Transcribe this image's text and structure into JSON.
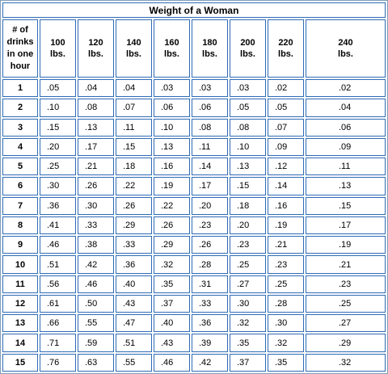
{
  "title": "Weight of a Woman",
  "corner_header": [
    "# of",
    "drinks",
    "in one",
    "hour"
  ],
  "weight_headers": [
    [
      "100",
      "lbs."
    ],
    [
      "120",
      "lbs."
    ],
    [
      "140",
      "lbs."
    ],
    [
      "160",
      "lbs."
    ],
    [
      "180",
      "lbs."
    ],
    [
      "200",
      "lbs."
    ],
    [
      "220",
      "lbs."
    ],
    [
      "240",
      "lbs."
    ]
  ],
  "rows": [
    {
      "drinks": "1",
      "values": [
        ".05",
        ".04",
        ".04",
        ".03",
        ".03",
        ".03",
        ".02",
        ".02"
      ]
    },
    {
      "drinks": "2",
      "values": [
        ".10",
        ".08",
        ".07",
        ".06",
        ".06",
        ".05",
        ".05",
        ".04"
      ]
    },
    {
      "drinks": "3",
      "values": [
        ".15",
        ".13",
        ".11",
        ".10",
        ".08",
        ".08",
        ".07",
        ".06"
      ]
    },
    {
      "drinks": "4",
      "values": [
        ".20",
        ".17",
        ".15",
        ".13",
        ".11",
        ".10",
        ".09",
        ".09"
      ]
    },
    {
      "drinks": "5",
      "values": [
        ".25",
        ".21",
        ".18",
        ".16",
        ".14",
        ".13",
        ".12",
        ".11"
      ]
    },
    {
      "drinks": "6",
      "values": [
        ".30",
        ".26",
        ".22",
        ".19",
        ".17",
        ".15",
        ".14",
        ".13"
      ]
    },
    {
      "drinks": "7",
      "values": [
        ".36",
        ".30",
        ".26",
        ".22",
        ".20",
        ".18",
        ".16",
        ".15"
      ]
    },
    {
      "drinks": "8",
      "values": [
        ".41",
        ".33",
        ".29",
        ".26",
        ".23",
        ".20",
        ".19",
        ".17"
      ]
    },
    {
      "drinks": "9",
      "values": [
        ".46",
        ".38",
        ".33",
        ".29",
        ".26",
        ".23",
        ".21",
        ".19"
      ]
    },
    {
      "drinks": "10",
      "values": [
        ".51",
        ".42",
        ".36",
        ".32",
        ".28",
        ".25",
        ".23",
        ".21"
      ]
    },
    {
      "drinks": "11",
      "values": [
        ".56",
        ".46",
        ".40",
        ".35",
        ".31",
        ".27",
        ".25",
        ".23"
      ]
    },
    {
      "drinks": "12",
      "values": [
        ".61",
        ".50",
        ".43",
        ".37",
        ".33",
        ".30",
        ".28",
        ".25"
      ]
    },
    {
      "drinks": "13",
      "values": [
        ".66",
        ".55",
        ".47",
        ".40",
        ".36",
        ".32",
        ".30",
        ".27"
      ]
    },
    {
      "drinks": "14",
      "values": [
        ".71",
        ".59",
        ".51",
        ".43",
        ".39",
        ".35",
        ".32",
        ".29"
      ]
    },
    {
      "drinks": "15",
      "values": [
        ".76",
        ".63",
        ".55",
        ".46",
        ".42",
        ".37",
        ".35",
        ".32"
      ]
    }
  ]
}
